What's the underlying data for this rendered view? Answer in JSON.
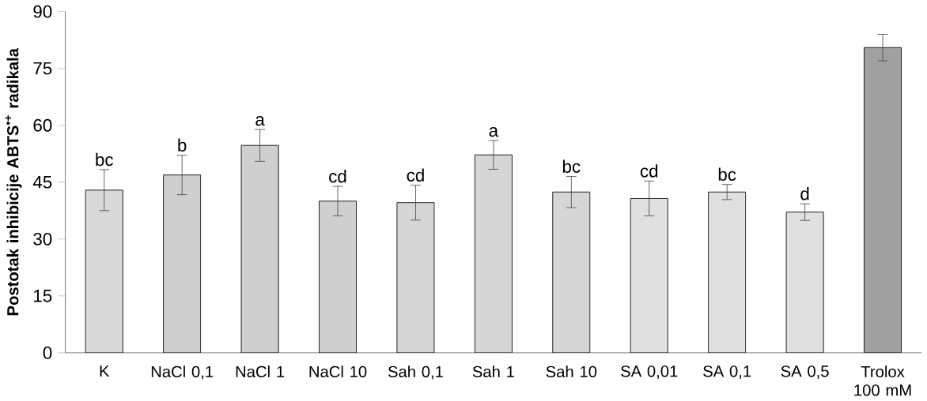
{
  "chart_data": {
    "type": "bar",
    "ylabel": "Postotak inhibicije ABTS$^{•+}$ radikala",
    "categories": [
      "K",
      "NaCl 0,1",
      "NaCl 1",
      "NaCl 10",
      "Sah 0,1",
      "Sah 1",
      "Sah 10",
      "SA 0,01",
      "SA 0,1",
      "SA 0,5",
      "Trolox 100 mM"
    ],
    "values": [
      42.9,
      46.9,
      54.7,
      40.0,
      39.6,
      52.2,
      42.4,
      40.7,
      42.4,
      37.1,
      80.5
    ],
    "errors": [
      5.4,
      5.2,
      4.2,
      3.9,
      4.6,
      3.8,
      4.1,
      4.6,
      2.0,
      2.2,
      3.5
    ],
    "colors": [
      "#d9d9d9",
      "#cfcfcf",
      "#cfcfcf",
      "#cfcfcf",
      "#d6d6d6",
      "#d6d6d6",
      "#d6d6d6",
      "#e0e0e0",
      "#e0e0e0",
      "#e0e0e0",
      "#a0a0a0"
    ],
    "ylim": [
      0,
      90
    ],
    "yticks": [
      0,
      15,
      30,
      45,
      60,
      75,
      90
    ],
    "annotations": [
      {
        "text": "bc",
        "x": "K",
        "y": 48.3
      },
      {
        "text": "b",
        "x": "NaCl 0,1",
        "y": 52.1
      },
      {
        "text": "a",
        "x": "NaCl 1",
        "y": 58.9
      },
      {
        "text": "cd",
        "x": "NaCl 10",
        "y": 43.9
      },
      {
        "text": "cd",
        "x": "Sah 0,1",
        "y": 44.2
      },
      {
        "text": "a",
        "x": "Sah 1",
        "y": 56.0
      },
      {
        "text": "bc",
        "x": "Sah 10",
        "y": 46.5
      },
      {
        "text": "cd",
        "x": "SA 0,01",
        "y": 45.3
      },
      {
        "text": "bc",
        "x": "SA 0,1",
        "y": 44.4
      },
      {
        "text": "d",
        "x": "SA 0,5",
        "y": 39.3
      }
    ]
  }
}
